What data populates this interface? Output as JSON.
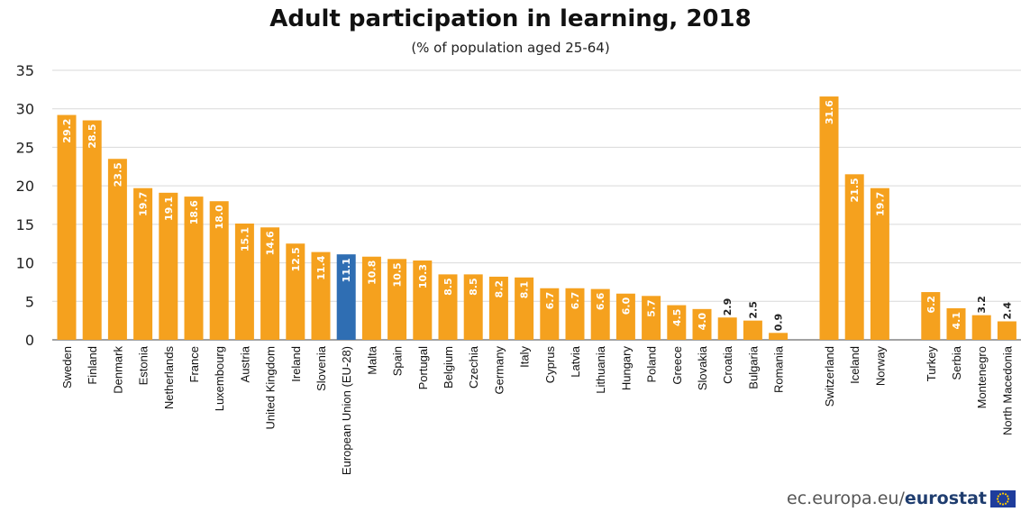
{
  "colors": {
    "bar": "#f5a11e",
    "highlight": "#2f6eb3",
    "grid": "#d9d9d9",
    "axis": "#444444",
    "label": "#ffffff",
    "footer_brand": "#1f3d6f",
    "flag": "#1f3d9c",
    "flag_stars": "#ffcc00"
  },
  "footer": {
    "text": "ec.europa.eu/",
    "brand": "eurostat"
  },
  "chart_data": {
    "type": "bar",
    "title": "Adult participation in learning, 2018",
    "subtitle": "(% of population aged 25-64)",
    "ylim": [
      0,
      35
    ],
    "yticks": [
      0,
      5,
      10,
      15,
      20,
      25,
      30,
      35
    ],
    "grid": true,
    "groups": [
      {
        "categories": [
          "Sweden",
          "Finland",
          "Denmark",
          "Estonia",
          "Netherlands",
          "France",
          "Luxembourg",
          "Austria",
          "United Kingdom",
          "Ireland",
          "Slovenia",
          "European Union (EU-28)",
          "Malta",
          "Spain",
          "Portugal",
          "Belgium",
          "Czechia",
          "Germany",
          "Italy",
          "Cyprus",
          "Latvia",
          "Lithuania",
          "Hungary",
          "Poland",
          "Greece",
          "Slovakia",
          "Croatia",
          "Bulgaria",
          "Romania"
        ],
        "values": [
          29.2,
          28.5,
          23.5,
          19.7,
          19.1,
          18.6,
          18.0,
          15.1,
          14.6,
          12.5,
          11.4,
          11.1,
          10.8,
          10.5,
          10.3,
          8.5,
          8.5,
          8.2,
          8.1,
          6.7,
          6.7,
          6.6,
          6.0,
          5.7,
          4.5,
          4.0,
          2.9,
          2.5,
          0.9
        ],
        "labels": [
          "29.2",
          "28.5",
          "23.5",
          "19.7",
          "19.1",
          "18.6",
          "18.0",
          "15.1",
          "14.6",
          "12.5",
          "11.4",
          "11.1",
          "10.8",
          "10.5",
          "10.3",
          "8.5",
          "8.5",
          "8.2",
          "8.1",
          "6.7",
          "6.7",
          "6.6",
          "6.0",
          "5.7",
          "4.5",
          "4.0",
          "2.9",
          "2.5",
          "0.9"
        ],
        "highlight": "European Union (EU-28)"
      },
      {
        "categories": [
          "Switzerland",
          "Iceland",
          "Norway"
        ],
        "values": [
          31.6,
          21.5,
          19.7
        ],
        "labels": [
          "31.6",
          "21.5",
          "19.7"
        ]
      },
      {
        "categories": [
          "Turkey",
          "Serbia",
          "Montenegro",
          "North Macedonia"
        ],
        "values": [
          6.2,
          4.1,
          3.2,
          2.4
        ],
        "labels": [
          "6.2",
          "4.1",
          "3.2",
          "2.4"
        ]
      }
    ]
  }
}
